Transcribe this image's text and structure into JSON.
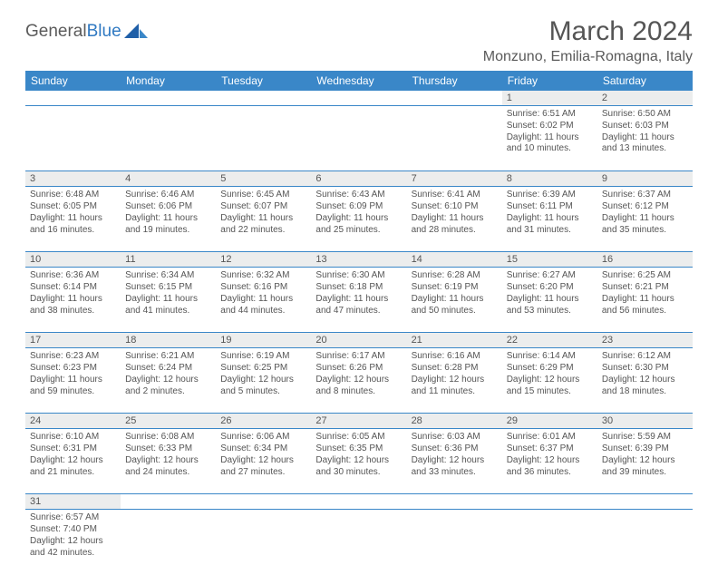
{
  "logo": {
    "part1": "General",
    "part2": "Blue"
  },
  "title": "March 2024",
  "location": "Monzuno, Emilia-Romagna, Italy",
  "style": {
    "header_bg": "#3a87c8",
    "header_text": "#ffffff",
    "daynum_bg": "#eceded",
    "text_color": "#555555",
    "divider_color": "#3a87c8",
    "title_fontsize": 30,
    "location_fontsize": 16,
    "th_fontsize": 12,
    "cell_fontsize": 10
  },
  "weekdays": [
    "Sunday",
    "Monday",
    "Tuesday",
    "Wednesday",
    "Thursday",
    "Friday",
    "Saturday"
  ],
  "weeks": [
    [
      null,
      null,
      null,
      null,
      null,
      {
        "num": "1",
        "sunrise": "Sunrise: 6:51 AM",
        "sunset": "Sunset: 6:02 PM",
        "day1": "Daylight: 11 hours",
        "day2": "and 10 minutes."
      },
      {
        "num": "2",
        "sunrise": "Sunrise: 6:50 AM",
        "sunset": "Sunset: 6:03 PM",
        "day1": "Daylight: 11 hours",
        "day2": "and 13 minutes."
      }
    ],
    [
      {
        "num": "3",
        "sunrise": "Sunrise: 6:48 AM",
        "sunset": "Sunset: 6:05 PM",
        "day1": "Daylight: 11 hours",
        "day2": "and 16 minutes."
      },
      {
        "num": "4",
        "sunrise": "Sunrise: 6:46 AM",
        "sunset": "Sunset: 6:06 PM",
        "day1": "Daylight: 11 hours",
        "day2": "and 19 minutes."
      },
      {
        "num": "5",
        "sunrise": "Sunrise: 6:45 AM",
        "sunset": "Sunset: 6:07 PM",
        "day1": "Daylight: 11 hours",
        "day2": "and 22 minutes."
      },
      {
        "num": "6",
        "sunrise": "Sunrise: 6:43 AM",
        "sunset": "Sunset: 6:09 PM",
        "day1": "Daylight: 11 hours",
        "day2": "and 25 minutes."
      },
      {
        "num": "7",
        "sunrise": "Sunrise: 6:41 AM",
        "sunset": "Sunset: 6:10 PM",
        "day1": "Daylight: 11 hours",
        "day2": "and 28 minutes."
      },
      {
        "num": "8",
        "sunrise": "Sunrise: 6:39 AM",
        "sunset": "Sunset: 6:11 PM",
        "day1": "Daylight: 11 hours",
        "day2": "and 31 minutes."
      },
      {
        "num": "9",
        "sunrise": "Sunrise: 6:37 AM",
        "sunset": "Sunset: 6:12 PM",
        "day1": "Daylight: 11 hours",
        "day2": "and 35 minutes."
      }
    ],
    [
      {
        "num": "10",
        "sunrise": "Sunrise: 6:36 AM",
        "sunset": "Sunset: 6:14 PM",
        "day1": "Daylight: 11 hours",
        "day2": "and 38 minutes."
      },
      {
        "num": "11",
        "sunrise": "Sunrise: 6:34 AM",
        "sunset": "Sunset: 6:15 PM",
        "day1": "Daylight: 11 hours",
        "day2": "and 41 minutes."
      },
      {
        "num": "12",
        "sunrise": "Sunrise: 6:32 AM",
        "sunset": "Sunset: 6:16 PM",
        "day1": "Daylight: 11 hours",
        "day2": "and 44 minutes."
      },
      {
        "num": "13",
        "sunrise": "Sunrise: 6:30 AM",
        "sunset": "Sunset: 6:18 PM",
        "day1": "Daylight: 11 hours",
        "day2": "and 47 minutes."
      },
      {
        "num": "14",
        "sunrise": "Sunrise: 6:28 AM",
        "sunset": "Sunset: 6:19 PM",
        "day1": "Daylight: 11 hours",
        "day2": "and 50 minutes."
      },
      {
        "num": "15",
        "sunrise": "Sunrise: 6:27 AM",
        "sunset": "Sunset: 6:20 PM",
        "day1": "Daylight: 11 hours",
        "day2": "and 53 minutes."
      },
      {
        "num": "16",
        "sunrise": "Sunrise: 6:25 AM",
        "sunset": "Sunset: 6:21 PM",
        "day1": "Daylight: 11 hours",
        "day2": "and 56 minutes."
      }
    ],
    [
      {
        "num": "17",
        "sunrise": "Sunrise: 6:23 AM",
        "sunset": "Sunset: 6:23 PM",
        "day1": "Daylight: 11 hours",
        "day2": "and 59 minutes."
      },
      {
        "num": "18",
        "sunrise": "Sunrise: 6:21 AM",
        "sunset": "Sunset: 6:24 PM",
        "day1": "Daylight: 12 hours",
        "day2": "and 2 minutes."
      },
      {
        "num": "19",
        "sunrise": "Sunrise: 6:19 AM",
        "sunset": "Sunset: 6:25 PM",
        "day1": "Daylight: 12 hours",
        "day2": "and 5 minutes."
      },
      {
        "num": "20",
        "sunrise": "Sunrise: 6:17 AM",
        "sunset": "Sunset: 6:26 PM",
        "day1": "Daylight: 12 hours",
        "day2": "and 8 minutes."
      },
      {
        "num": "21",
        "sunrise": "Sunrise: 6:16 AM",
        "sunset": "Sunset: 6:28 PM",
        "day1": "Daylight: 12 hours",
        "day2": "and 11 minutes."
      },
      {
        "num": "22",
        "sunrise": "Sunrise: 6:14 AM",
        "sunset": "Sunset: 6:29 PM",
        "day1": "Daylight: 12 hours",
        "day2": "and 15 minutes."
      },
      {
        "num": "23",
        "sunrise": "Sunrise: 6:12 AM",
        "sunset": "Sunset: 6:30 PM",
        "day1": "Daylight: 12 hours",
        "day2": "and 18 minutes."
      }
    ],
    [
      {
        "num": "24",
        "sunrise": "Sunrise: 6:10 AM",
        "sunset": "Sunset: 6:31 PM",
        "day1": "Daylight: 12 hours",
        "day2": "and 21 minutes."
      },
      {
        "num": "25",
        "sunrise": "Sunrise: 6:08 AM",
        "sunset": "Sunset: 6:33 PM",
        "day1": "Daylight: 12 hours",
        "day2": "and 24 minutes."
      },
      {
        "num": "26",
        "sunrise": "Sunrise: 6:06 AM",
        "sunset": "Sunset: 6:34 PM",
        "day1": "Daylight: 12 hours",
        "day2": "and 27 minutes."
      },
      {
        "num": "27",
        "sunrise": "Sunrise: 6:05 AM",
        "sunset": "Sunset: 6:35 PM",
        "day1": "Daylight: 12 hours",
        "day2": "and 30 minutes."
      },
      {
        "num": "28",
        "sunrise": "Sunrise: 6:03 AM",
        "sunset": "Sunset: 6:36 PM",
        "day1": "Daylight: 12 hours",
        "day2": "and 33 minutes."
      },
      {
        "num": "29",
        "sunrise": "Sunrise: 6:01 AM",
        "sunset": "Sunset: 6:37 PM",
        "day1": "Daylight: 12 hours",
        "day2": "and 36 minutes."
      },
      {
        "num": "30",
        "sunrise": "Sunrise: 5:59 AM",
        "sunset": "Sunset: 6:39 PM",
        "day1": "Daylight: 12 hours",
        "day2": "and 39 minutes."
      }
    ],
    [
      {
        "num": "31",
        "sunrise": "Sunrise: 6:57 AM",
        "sunset": "Sunset: 7:40 PM",
        "day1": "Daylight: 12 hours",
        "day2": "and 42 minutes."
      },
      null,
      null,
      null,
      null,
      null,
      null
    ]
  ]
}
